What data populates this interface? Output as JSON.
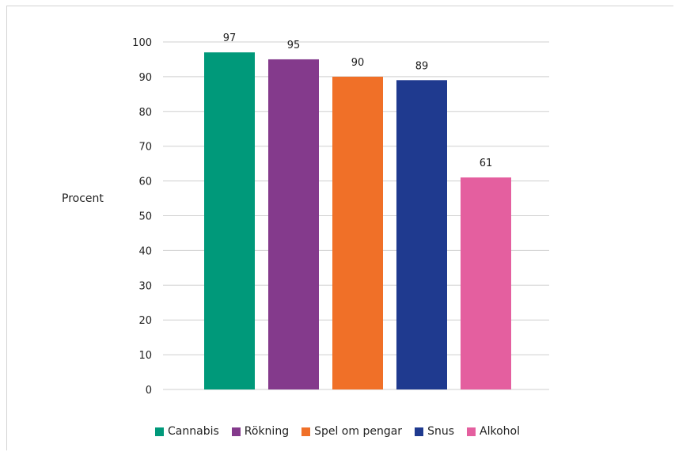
{
  "chart_data": {
    "type": "bar",
    "ylabel": "Procent",
    "xlabel": "",
    "ylim": [
      0,
      100
    ],
    "yticks": [
      0,
      10,
      20,
      30,
      40,
      50,
      60,
      70,
      80,
      90,
      100
    ],
    "grid": true,
    "legend_position": "bottom",
    "categories": [
      "Cannabis",
      "Rökning",
      "Spel om pengar",
      "Snus",
      "Alkohol"
    ],
    "values": [
      97,
      95,
      90,
      89,
      61
    ],
    "colors": [
      "#00997a",
      "#843a8c",
      "#f07028",
      "#1f3a8f",
      "#e45f9f"
    ]
  }
}
